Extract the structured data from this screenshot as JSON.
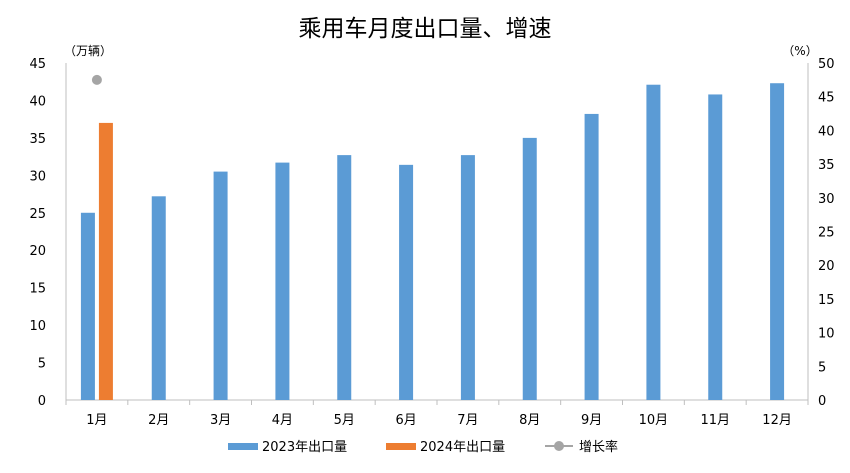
{
  "chart_data": {
    "type": "bar",
    "title": "乘用车月度出口量、增速",
    "y_left_unit": "（万辆）",
    "y_right_unit": "（%）",
    "categories": [
      "1月",
      "2月",
      "3月",
      "4月",
      "5月",
      "6月",
      "7月",
      "8月",
      "9月",
      "10月",
      "11月",
      "12月"
    ],
    "series": [
      {
        "name": "2023年出口量",
        "color": "#5B9BD5",
        "axis": "left",
        "values": [
          25.0,
          27.2,
          30.5,
          31.7,
          32.7,
          31.4,
          32.7,
          35.0,
          38.2,
          42.1,
          40.8,
          42.3
        ]
      },
      {
        "name": "2024年出口量",
        "color": "#ED7D31",
        "axis": "left",
        "values": [
          37.0,
          null,
          null,
          null,
          null,
          null,
          null,
          null,
          null,
          null,
          null,
          null
        ]
      },
      {
        "name": "增长率",
        "color": "#A5A5A5",
        "axis": "right",
        "style": "marker",
        "values": [
          47.5,
          null,
          null,
          null,
          null,
          null,
          null,
          null,
          null,
          null,
          null,
          null
        ]
      }
    ],
    "y_left_ticks": [
      "0",
      "5",
      "10",
      "15",
      "20",
      "25",
      "30",
      "35",
      "40",
      "45"
    ],
    "y_right_ticks": [
      "0",
      "5",
      "10",
      "15",
      "20",
      "25",
      "30",
      "35",
      "40",
      "45",
      "50"
    ],
    "ylim_left": [
      0,
      45
    ],
    "ylim_right": [
      0,
      50
    ],
    "legend_position": "bottom",
    "grid": false
  }
}
